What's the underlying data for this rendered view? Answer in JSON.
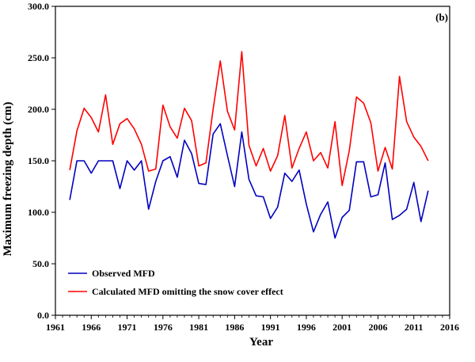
{
  "chart_data": {
    "type": "line",
    "panel_label": "(b)",
    "xlabel": "Year",
    "ylabel": "Maximum freezing depth (cm)",
    "xlim": [
      1961,
      2016
    ],
    "ylim": [
      0,
      300
    ],
    "x_ticks": [
      1961,
      1966,
      1971,
      1976,
      1981,
      1986,
      1991,
      1996,
      2001,
      2006,
      2011,
      2016
    ],
    "x_tick_labels": [
      "1961",
      "1966",
      "1971",
      "1976",
      "1981",
      "1986",
      "1991",
      "1996",
      "2001",
      "2006",
      "2011",
      "2016"
    ],
    "y_ticks": [
      0,
      50,
      100,
      150,
      200,
      250,
      300
    ],
    "y_tick_labels": [
      "0.0",
      "50.0",
      "100.0",
      "150.0",
      "200.0",
      "250.0",
      "300.0"
    ],
    "grid": false,
    "legend_position": "bottom-left",
    "x": [
      1963,
      1964,
      1965,
      1966,
      1967,
      1968,
      1969,
      1970,
      1971,
      1972,
      1973,
      1974,
      1975,
      1976,
      1977,
      1978,
      1979,
      1980,
      1981,
      1982,
      1983,
      1984,
      1985,
      1986,
      1987,
      1988,
      1989,
      1990,
      1991,
      1992,
      1993,
      1994,
      1995,
      1996,
      1997,
      1998,
      1999,
      2000,
      2001,
      2002,
      2003,
      2004,
      2005,
      2006,
      2007,
      2008,
      2009,
      2010,
      2011,
      2012,
      2013
    ],
    "series": [
      {
        "name": "Observed MFD",
        "color": "#0000c0",
        "values": [
          112,
          150,
          150,
          138,
          150,
          150,
          150,
          123,
          150,
          141,
          150,
          103,
          130,
          150,
          154,
          134,
          170,
          157,
          128,
          127,
          176,
          186,
          155,
          125,
          178,
          132,
          116,
          115,
          94,
          105,
          138,
          130,
          141,
          108,
          81,
          98,
          110,
          75,
          95,
          102,
          149,
          149,
          115,
          117,
          148,
          93,
          97,
          103,
          129,
          91,
          121
        ]
      },
      {
        "name": "Calculated MFD omitting the snow cover effect",
        "color": "#ff0000",
        "values": [
          141,
          179,
          201,
          192,
          178,
          214,
          166,
          186,
          191,
          181,
          166,
          140,
          142,
          204,
          183,
          172,
          201,
          189,
          145,
          148,
          200,
          247,
          198,
          180,
          256,
          165,
          145,
          162,
          140,
          155,
          194,
          143,
          162,
          178,
          150,
          158,
          143,
          188,
          126,
          160,
          212,
          206,
          187,
          140,
          163,
          142,
          232,
          188,
          173,
          164,
          150
        ]
      }
    ]
  }
}
